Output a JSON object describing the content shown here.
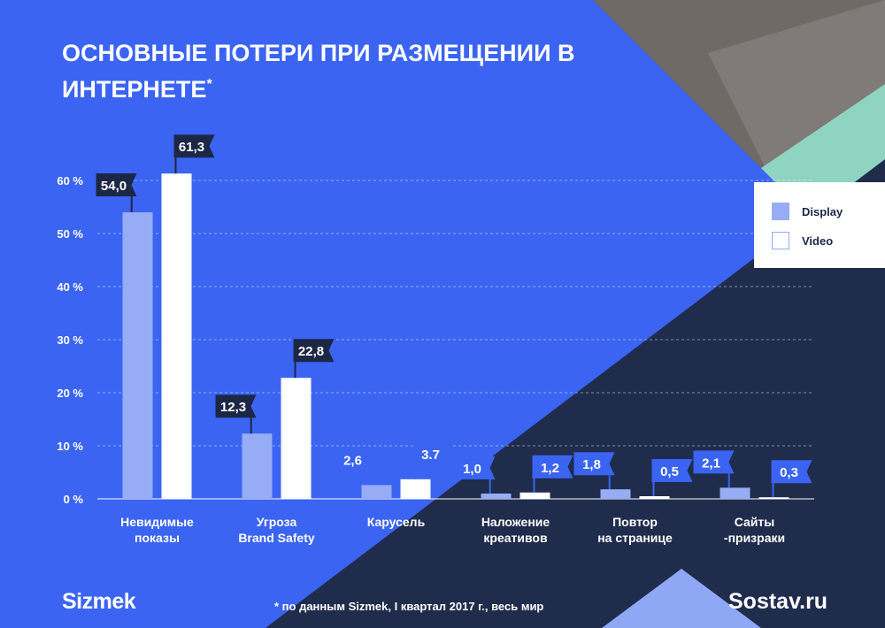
{
  "title": "ОСНОВНЫЕ ПОТЕРИ ПРИ РАЗМЕЩЕНИИ В ИНТЕРНЕТЕ",
  "title_mark": "*",
  "footnote": "* по данным Sizmek, I квартал 2017 г., весь мир",
  "logo_left": "Sizmek",
  "logo_right": "Sostav.ru",
  "colors": {
    "background_blue": "#3b64f2",
    "navy": "#1f2c4c",
    "teal": "#8fd4c1",
    "display_bar": "#96acf5",
    "video_bar": "#ffffff",
    "label_dark": "#1c2746",
    "label_blue": "#3b64f2"
  },
  "chart_data": {
    "type": "bar",
    "categories": [
      [
        "Невидимые",
        "показы"
      ],
      [
        "Угроза",
        "Brand Safety"
      ],
      [
        "Карусель"
      ],
      [
        "Наложение",
        "креативов"
      ],
      [
        "Повтор",
        "на странице"
      ],
      [
        "Сайты",
        "-призраки"
      ]
    ],
    "series": [
      {
        "name": "Display",
        "values": [
          54.0,
          12.3,
          2.6,
          1.0,
          1.8,
          2.1
        ],
        "labels": [
          "54,0",
          "12,3",
          "2,6",
          "1,0",
          "1,8",
          "2,1"
        ]
      },
      {
        "name": "Video",
        "values": [
          61.3,
          22.8,
          3.7,
          1.2,
          0.5,
          0.3
        ],
        "labels": [
          "61,3",
          "22,8",
          "3.7",
          "1,2",
          "0,5",
          "0,3"
        ]
      }
    ],
    "yticks": [
      "0 %",
      "10 %",
      "20 %",
      "30 %",
      "40 %",
      "50 %",
      "60 %"
    ],
    "ylim": [
      0,
      60
    ],
    "grid": true,
    "legend_position": "right"
  }
}
